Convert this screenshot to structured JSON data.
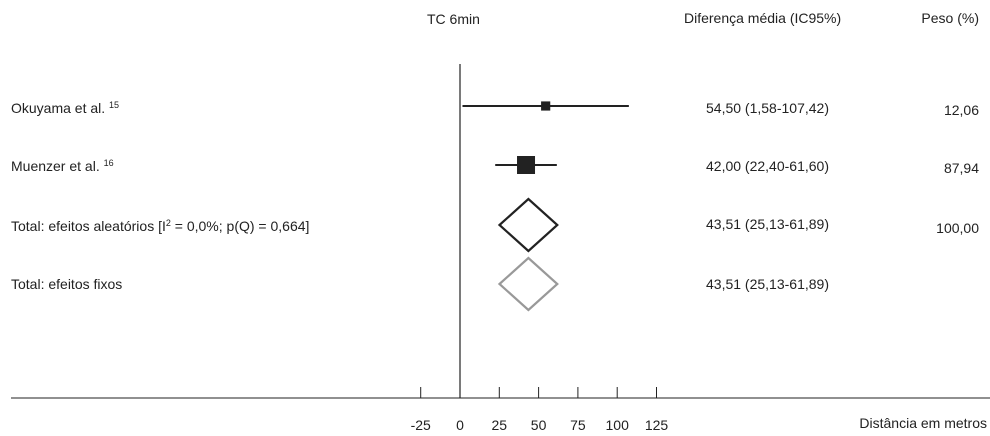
{
  "header": {
    "title": "TC 6min",
    "effect_col": "Diferença média (IC95%)",
    "weight_col": "Peso (%)"
  },
  "x_axis_label": "Distância em metros",
  "colors": {
    "random": "#222222",
    "fixed": "#999999",
    "axis": "#222222"
  },
  "rows": [
    {
      "name": "Okuyama et al.",
      "ref": "15",
      "ci_text": "54,50 (1,58-107,42)",
      "weight": "12,06"
    },
    {
      "name": "Muenzer et al.",
      "ref": "16",
      "ci_text": "42,00 (22,40-61,60)",
      "weight": "87,94"
    },
    {
      "name": "Total: efeitos aleatórios [I",
      "sup": "2",
      "name_suffix": " = 0,0%; p(Q) = 0,664]",
      "ci_text": "43,51 (25,13-61,89)",
      "weight": "100,00"
    },
    {
      "name": "Total: efeitos fixos",
      "ci_text": "43,51 (25,13-61,89)"
    }
  ],
  "chart_data": {
    "type": "forest",
    "xlim": [
      -25,
      125
    ],
    "x_ticks": [
      -25,
      0,
      25,
      50,
      75,
      100,
      125
    ],
    "studies": [
      {
        "name": "Okuyama et al.",
        "ref": "15",
        "estimate": 54.5,
        "lower": 1.58,
        "upper": 107.42,
        "weight": 12.06
      },
      {
        "name": "Muenzer et al.",
        "ref": "16",
        "estimate": 42.0,
        "lower": 22.4,
        "upper": 61.6,
        "weight": 87.94
      }
    ],
    "pooled": [
      {
        "name": "Total: efeitos aleatórios",
        "estimate": 43.51,
        "lower": 25.13,
        "upper": 61.89,
        "weight": 100.0,
        "style": "random"
      },
      {
        "name": "Total: efeitos fixos",
        "estimate": 43.51,
        "lower": 25.13,
        "upper": 61.89,
        "style": "fixed"
      }
    ],
    "heterogeneity": {
      "I2": "0,0%",
      "pQ": "0,664"
    },
    "xlabel": "Distância em metros"
  }
}
